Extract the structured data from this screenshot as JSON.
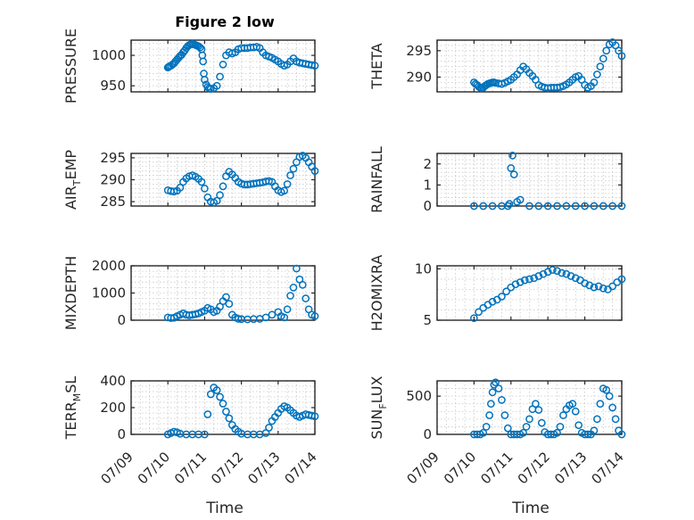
{
  "chart_data": [
    {
      "type": "scatter",
      "title": "Figure 2 low",
      "ylabel": "PRESSURE",
      "ylim": [
        940,
        1025
      ],
      "yticks": [
        950,
        1000
      ],
      "x": [
        "07/10 00:00",
        "07/10 00:30",
        "07/10 01:00",
        "07/10 02:00",
        "07/10 03:00",
        "07/10 04:00",
        "07/10 05:00",
        "07/10 06:00",
        "07/10 07:00",
        "07/10 08:00",
        "07/10 09:00",
        "07/10 10:00",
        "07/10 11:00",
        "07/10 12:00",
        "07/10 13:00",
        "07/10 14:00",
        "07/10 15:00",
        "07/10 16:00",
        "07/10 17:00",
        "07/10 18:00",
        "07/10 19:00",
        "07/10 20:00",
        "07/10 21:00",
        "07/10 22:00",
        "07/10 22:30",
        "07/10 23:00",
        "07/10 23:30",
        "07/11 00:00",
        "07/11 01:00",
        "07/11 02:00",
        "07/11 03:00",
        "07/11 04:00",
        "07/11 06:00",
        "07/11 08:00",
        "07/11 10:00",
        "07/11 12:00",
        "07/11 14:00",
        "07/11 16:00",
        "07/11 18:00",
        "07/11 20:00",
        "07/11 22:00",
        "07/12 00:00",
        "07/12 02:00",
        "07/12 04:00",
        "07/12 06:00",
        "07/12 08:00",
        "07/12 10:00",
        "07/12 12:00",
        "07/12 14:00",
        "07/12 16:00",
        "07/12 18:00",
        "07/12 20:00",
        "07/12 22:00",
        "07/13 00:00",
        "07/13 02:00",
        "07/13 04:00",
        "07/13 06:00",
        "07/13 08:00",
        "07/13 10:00",
        "07/13 12:00",
        "07/13 14:00",
        "07/13 16:00",
        "07/13 18:00",
        "07/13 20:00",
        "07/13 22:00",
        "07/14 00:00"
      ],
      "y": [
        980,
        981,
        982,
        983,
        985,
        987,
        990,
        993,
        996,
        999,
        1001,
        1005,
        1008,
        1012,
        1015,
        1017,
        1018,
        1019,
        1018,
        1017,
        1016,
        1015,
        1013,
        1010,
        1000,
        990,
        970,
        960,
        952,
        948,
        946,
        945,
        946,
        950,
        965,
        985,
        1000,
        1005,
        1003,
        1005,
        1010,
        1012,
        1012,
        1012,
        1013,
        1013,
        1014,
        1012,
        1005,
        1000,
        998,
        996,
        993,
        990,
        986,
        983,
        985,
        990,
        995,
        990,
        988,
        987,
        986,
        985,
        984,
        983
      ]
    },
    {
      "type": "scatter",
      "ylabel": "THETA",
      "ylim": [
        287.2,
        297
      ],
      "yticks": [
        290,
        295
      ],
      "x": [
        "07/10 00:00",
        "07/10 01:00",
        "07/10 02:00",
        "07/10 03:00",
        "07/10 04:00",
        "07/10 05:00",
        "07/10 06:00",
        "07/10 07:00",
        "07/10 08:00",
        "07/10 09:00",
        "07/10 10:00",
        "07/10 11:00",
        "07/10 12:00",
        "07/10 13:00",
        "07/10 14:00",
        "07/10 16:00",
        "07/10 18:00",
        "07/10 20:00",
        "07/10 22:00",
        "07/11 00:00",
        "07/11 02:00",
        "07/11 04:00",
        "07/11 06:00",
        "07/11 08:00",
        "07/11 10:00",
        "07/11 12:00",
        "07/11 14:00",
        "07/11 16:00",
        "07/11 18:00",
        "07/11 20:00",
        "07/11 22:00",
        "07/12 00:00",
        "07/12 02:00",
        "07/12 04:00",
        "07/12 06:00",
        "07/12 08:00",
        "07/12 10:00",
        "07/12 12:00",
        "07/12 14:00",
        "07/12 16:00",
        "07/12 18:00",
        "07/12 20:00",
        "07/12 22:00",
        "07/13 00:00",
        "07/13 02:00",
        "07/13 04:00",
        "07/13 06:00",
        "07/13 08:00",
        "07/13 10:00",
        "07/13 12:00",
        "07/13 14:00",
        "07/13 16:00",
        "07/13 18:00",
        "07/13 20:00",
        "07/13 22:00",
        "07/14 00:00"
      ],
      "y": [
        289,
        288.7,
        288.5,
        288.2,
        288,
        287.9,
        288,
        288.3,
        288.5,
        288.7,
        288.8,
        288.9,
        289,
        289,
        288.9,
        288.8,
        288.7,
        288.9,
        289.2,
        289.5,
        290,
        290.5,
        291.3,
        292,
        291.5,
        290.8,
        290.2,
        289.5,
        288.5,
        288.2,
        288,
        287.9,
        288,
        288,
        288,
        288.1,
        288.3,
        288.6,
        289,
        289.5,
        290,
        290.2,
        289.5,
        288.5,
        288,
        288.3,
        289,
        290.5,
        292,
        293.5,
        295,
        296.2,
        296.6,
        296,
        295,
        294
      ]
    },
    {
      "type": "scatter",
      "ylabel": "AIR_TEMP",
      "ylim": [
        284,
        296
      ],
      "yticks": [
        285,
        290,
        295
      ],
      "x": [
        "07/10 00:00",
        "07/10 02:00",
        "07/10 04:00",
        "07/10 06:00",
        "07/10 08:00",
        "07/10 10:00",
        "07/10 12:00",
        "07/10 14:00",
        "07/10 16:00",
        "07/10 18:00",
        "07/10 20:00",
        "07/10 22:00",
        "07/11 00:00",
        "07/11 02:00",
        "07/11 04:00",
        "07/11 06:00",
        "07/11 08:00",
        "07/11 10:00",
        "07/11 12:00",
        "07/11 14:00",
        "07/11 16:00",
        "07/11 18:00",
        "07/11 20:00",
        "07/11 22:00",
        "07/12 00:00",
        "07/12 02:00",
        "07/12 04:00",
        "07/12 06:00",
        "07/12 08:00",
        "07/12 10:00",
        "07/12 12:00",
        "07/12 14:00",
        "07/12 16:00",
        "07/12 18:00",
        "07/12 20:00",
        "07/12 22:00",
        "07/13 00:00",
        "07/13 02:00",
        "07/13 04:00",
        "07/13 06:00",
        "07/13 08:00",
        "07/13 10:00",
        "07/13 12:00",
        "07/13 14:00",
        "07/13 16:00",
        "07/13 18:00",
        "07/13 20:00",
        "07/13 22:00",
        "07/14 00:00"
      ],
      "y": [
        287.6,
        287.4,
        287.3,
        287.5,
        288.2,
        289.5,
        290.3,
        290.8,
        291,
        290.7,
        290.2,
        289.5,
        288,
        286,
        285,
        284.8,
        285.2,
        286.5,
        288.5,
        290.8,
        291.8,
        291.2,
        290.4,
        289.5,
        289.1,
        288.9,
        288.9,
        289,
        289.1,
        289.2,
        289.3,
        289.4,
        289.6,
        289.7,
        289.5,
        288.5,
        287.6,
        287.2,
        287.5,
        289,
        291,
        292.5,
        294,
        295.2,
        295.5,
        295,
        294,
        293,
        292
      ]
    },
    {
      "type": "scatter",
      "ylabel": "RAINFALL",
      "ylim": [
        0,
        2.5
      ],
      "yticks": [
        0,
        1,
        2
      ],
      "x": [
        "07/10 00:00",
        "07/10 06:00",
        "07/10 12:00",
        "07/10 18:00",
        "07/10 22:00",
        "07/10 23:00",
        "07/11 00:00",
        "07/11 01:00",
        "07/11 02:00",
        "07/11 04:00",
        "07/11 06:00",
        "07/11 12:00",
        "07/11 18:00",
        "07/12 00:00",
        "07/12 06:00",
        "07/12 12:00",
        "07/12 18:00",
        "07/13 00:00",
        "07/13 06:00",
        "07/13 12:00",
        "07/13 18:00",
        "07/14 00:00"
      ],
      "y": [
        0,
        0,
        0,
        0,
        0,
        0.1,
        1.8,
        2.4,
        1.5,
        0.2,
        0.3,
        0,
        0,
        0,
        0,
        0,
        0,
        0,
        0,
        0,
        0,
        0
      ]
    },
    {
      "type": "scatter",
      "ylabel": "MIXDEPTH",
      "ylim": [
        0,
        2000
      ],
      "yticks": [
        0,
        1000,
        2000
      ],
      "x": [
        "07/10 00:00",
        "07/10 02:00",
        "07/10 04:00",
        "07/10 06:00",
        "07/10 08:00",
        "07/10 10:00",
        "07/10 12:00",
        "07/10 14:00",
        "07/10 16:00",
        "07/10 18:00",
        "07/10 20:00",
        "07/10 22:00",
        "07/11 00:00",
        "07/11 02:00",
        "07/11 04:00",
        "07/11 06:00",
        "07/11 08:00",
        "07/11 10:00",
        "07/11 12:00",
        "07/11 14:00",
        "07/11 16:00",
        "07/11 18:00",
        "07/11 20:00",
        "07/11 22:00",
        "07/12 00:00",
        "07/12 04:00",
        "07/12 08:00",
        "07/12 12:00",
        "07/12 16:00",
        "07/12 20:00",
        "07/13 00:00",
        "07/13 02:00",
        "07/13 04:00",
        "07/13 06:00",
        "07/13 08:00",
        "07/13 10:00",
        "07/13 12:00",
        "07/13 14:00",
        "07/13 16:00",
        "07/13 18:00",
        "07/13 20:00",
        "07/13 22:00",
        "07/14 00:00"
      ],
      "y": [
        100,
        80,
        90,
        150,
        200,
        250,
        200,
        180,
        200,
        220,
        250,
        300,
        350,
        450,
        400,
        300,
        350,
        500,
        700,
        850,
        600,
        200,
        100,
        50,
        40,
        30,
        40,
        50,
        100,
        200,
        300,
        150,
        100,
        400,
        900,
        1200,
        1900,
        1500,
        1300,
        800,
        400,
        200,
        150
      ]
    },
    {
      "type": "scatter",
      "ylabel": "H2OMIXRA",
      "ylim": [
        5,
        10.3
      ],
      "yticks": [
        5,
        10
      ],
      "x": [
        "07/10 00:00",
        "07/10 03:00",
        "07/10 06:00",
        "07/10 09:00",
        "07/10 12:00",
        "07/10 15:00",
        "07/10 18:00",
        "07/10 21:00",
        "07/11 00:00",
        "07/11 03:00",
        "07/11 06:00",
        "07/11 09:00",
        "07/11 12:00",
        "07/11 15:00",
        "07/11 18:00",
        "07/11 21:00",
        "07/12 00:00",
        "07/12 03:00",
        "07/12 06:00",
        "07/12 09:00",
        "07/12 12:00",
        "07/12 15:00",
        "07/12 18:00",
        "07/12 21:00",
        "07/13 00:00",
        "07/13 03:00",
        "07/13 06:00",
        "07/13 09:00",
        "07/13 12:00",
        "07/13 15:00",
        "07/13 18:00",
        "07/13 21:00",
        "07/14 00:00"
      ],
      "y": [
        5.2,
        5.8,
        6.2,
        6.5,
        6.8,
        7,
        7.3,
        7.8,
        8.2,
        8.5,
        8.7,
        8.9,
        9,
        9.1,
        9.3,
        9.5,
        9.7,
        9.9,
        9.8,
        9.6,
        9.5,
        9.3,
        9.1,
        8.9,
        8.6,
        8.4,
        8.2,
        8.3,
        8.1,
        8,
        8.3,
        8.7,
        9
      ]
    },
    {
      "type": "scatter",
      "ylabel": "TERR_MSL",
      "ylim": [
        0,
        400
      ],
      "yticks": [
        0,
        200,
        400
      ],
      "x": [
        "07/10 00:00",
        "07/10 02:00",
        "07/10 04:00",
        "07/10 06:00",
        "07/10 08:00",
        "07/10 12:00",
        "07/10 16:00",
        "07/10 20:00",
        "07/11 00:00",
        "07/11 02:00",
        "07/11 04:00",
        "07/11 06:00",
        "07/11 08:00",
        "07/11 10:00",
        "07/11 12:00",
        "07/11 14:00",
        "07/11 16:00",
        "07/11 18:00",
        "07/11 20:00",
        "07/11 22:00",
        "07/12 00:00",
        "07/12 04:00",
        "07/12 08:00",
        "07/12 12:00",
        "07/12 16:00",
        "07/12 18:00",
        "07/12 20:00",
        "07/12 22:00",
        "07/13 00:00",
        "07/13 02:00",
        "07/13 04:00",
        "07/13 06:00",
        "07/13 08:00",
        "07/13 10:00",
        "07/13 12:00",
        "07/13 14:00",
        "07/13 16:00",
        "07/13 18:00",
        "07/13 20:00",
        "07/13 22:00",
        "07/14 00:00"
      ],
      "y": [
        0,
        10,
        20,
        15,
        5,
        0,
        0,
        0,
        0,
        150,
        300,
        350,
        330,
        280,
        230,
        170,
        120,
        70,
        40,
        20,
        5,
        0,
        0,
        0,
        10,
        50,
        100,
        130,
        160,
        190,
        210,
        200,
        180,
        160,
        140,
        130,
        140,
        150,
        145,
        140,
        135
      ]
    },
    {
      "type": "scatter",
      "ylabel": "SUN_FLUX",
      "ylim": [
        0,
        700
      ],
      "yticks": [
        0,
        500
      ],
      "x": [
        "07/10 00:00",
        "07/10 02:00",
        "07/10 04:00",
        "07/10 06:00",
        "07/10 08:00",
        "07/10 10:00",
        "07/10 11:00",
        "07/10 12:00",
        "07/10 13:00",
        "07/10 14:00",
        "07/10 16:00",
        "07/10 18:00",
        "07/10 20:00",
        "07/10 22:00",
        "07/11 00:00",
        "07/11 02:00",
        "07/11 04:00",
        "07/11 06:00",
        "07/11 08:00",
        "07/11 10:00",
        "07/11 12:00",
        "07/11 14:00",
        "07/11 16:00",
        "07/11 18:00",
        "07/11 20:00",
        "07/11 22:00",
        "07/12 00:00",
        "07/12 02:00",
        "07/12 04:00",
        "07/12 06:00",
        "07/12 08:00",
        "07/12 10:00",
        "07/12 12:00",
        "07/12 14:00",
        "07/12 16:00",
        "07/12 18:00",
        "07/12 20:00",
        "07/12 22:00",
        "07/13 00:00",
        "07/13 02:00",
        "07/13 04:00",
        "07/13 06:00",
        "07/13 08:00",
        "07/13 10:00",
        "07/13 12:00",
        "07/13 14:00",
        "07/13 16:00",
        "07/13 18:00",
        "07/13 20:00",
        "07/13 22:00",
        "07/14 00:00"
      ],
      "y": [
        0,
        0,
        0,
        20,
        100,
        250,
        400,
        550,
        650,
        680,
        600,
        450,
        250,
        80,
        0,
        0,
        0,
        0,
        20,
        100,
        200,
        330,
        400,
        320,
        150,
        30,
        0,
        0,
        0,
        20,
        100,
        250,
        330,
        380,
        400,
        300,
        120,
        20,
        0,
        0,
        0,
        50,
        200,
        400,
        600,
        580,
        500,
        350,
        200,
        50,
        0
      ]
    }
  ],
  "x_axis": {
    "label": "Time",
    "ticks": [
      "07/09",
      "07/10",
      "07/11",
      "07/12",
      "07/13",
      "07/14"
    ]
  },
  "style": {
    "marker_color": "#0072BD",
    "axis_color": "#262626",
    "grid_color": "#c8c8c8"
  }
}
